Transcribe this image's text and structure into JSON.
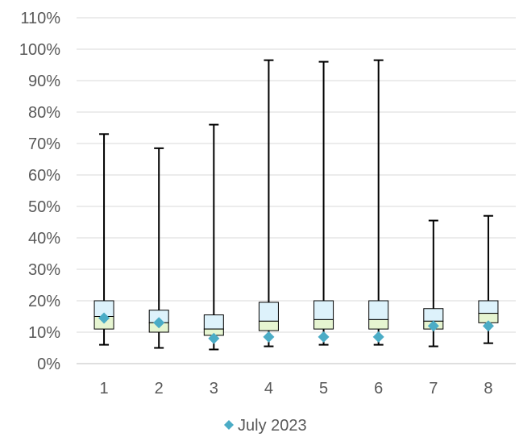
{
  "chart_data": {
    "type": "box",
    "categories": [
      "1",
      "2",
      "3",
      "4",
      "5",
      "6",
      "7",
      "8"
    ],
    "y_ticks": [
      "0%",
      "10%",
      "20%",
      "30%",
      "40%",
      "50%",
      "60%",
      "70%",
      "80%",
      "90%",
      "100%",
      "110%"
    ],
    "ylim": [
      0,
      110
    ],
    "y_unit": "%",
    "grid": true,
    "legend_position": "bottom",
    "boxes": [
      {
        "min": 6,
        "q1": 11,
        "median": 15,
        "q3": 20,
        "max": 73
      },
      {
        "min": 5,
        "q1": 10,
        "median": 13,
        "q3": 17,
        "max": 68.5
      },
      {
        "min": 4.5,
        "q1": 9,
        "median": 11,
        "q3": 15.5,
        "max": 76
      },
      {
        "min": 5.5,
        "q1": 10.5,
        "median": 13.5,
        "q3": 19.5,
        "max": 96.5
      },
      {
        "min": 6,
        "q1": 11,
        "median": 14,
        "q3": 20,
        "max": 96
      },
      {
        "min": 6,
        "q1": 11,
        "median": 14,
        "q3": 20,
        "max": 96.5
      },
      {
        "min": 5.5,
        "q1": 11,
        "median": 13.5,
        "q3": 17.5,
        "max": 45.5
      },
      {
        "min": 6.5,
        "q1": 13,
        "median": 16,
        "q3": 20,
        "max": 47
      }
    ],
    "series": [
      {
        "name": "July 2023",
        "values": [
          14.5,
          13,
          8,
          8.5,
          8.5,
          8.5,
          12,
          12
        ],
        "marker": "diamond",
        "color": "#4bacc6"
      }
    ],
    "colors": {
      "upper_box": "#ddf2fb",
      "lower_box": "#e6f5d1",
      "box_stroke": "#000000",
      "grid": "#d9d9d9",
      "axis": "#bfbfbf",
      "text": "#595959"
    }
  }
}
